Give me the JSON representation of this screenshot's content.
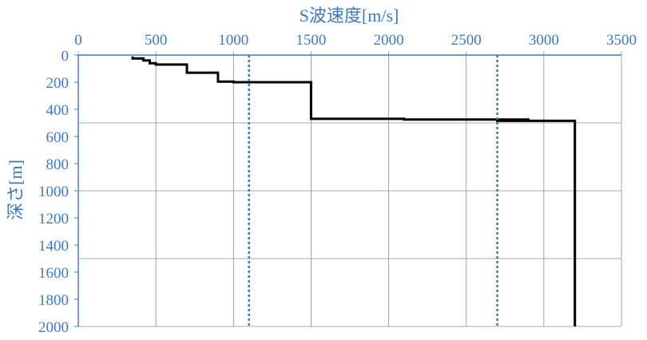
{
  "chart_data": {
    "type": "line",
    "title": "",
    "xlabel": "S波速度[m/s]",
    "ylabel": "深さ[m]",
    "x_axis_position": "top",
    "y_axis_inverted": true,
    "xlim": [
      0,
      3500
    ],
    "ylim": [
      0,
      2000
    ],
    "x_ticks": [
      "0",
      "500",
      "1000",
      "1500",
      "2000",
      "2500",
      "3000",
      "3500"
    ],
    "y_ticks": [
      "0",
      "200",
      "400",
      "600",
      "800",
      "1000",
      "1200",
      "1400",
      "1600",
      "1800",
      "2000"
    ],
    "grid": true,
    "colors": {
      "axis_text": "#3f7ac0",
      "profile": "#000000",
      "reference": "#3f7ac0",
      "grid": "#8c8c8c"
    },
    "series": [
      {
        "style": "solid-step",
        "points": [
          [
            350,
            10
          ],
          [
            350,
            25
          ],
          [
            420,
            25
          ],
          [
            420,
            40
          ],
          [
            460,
            40
          ],
          [
            460,
            60
          ],
          [
            500,
            60
          ],
          [
            500,
            70
          ],
          [
            700,
            70
          ],
          [
            700,
            130
          ],
          [
            900,
            130
          ],
          [
            900,
            195
          ],
          [
            1000,
            195
          ],
          [
            1000,
            200
          ],
          [
            1500,
            200
          ],
          [
            1500,
            470
          ],
          [
            2100,
            470
          ],
          [
            2100,
            475
          ],
          [
            2900,
            475
          ],
          [
            2900,
            478
          ],
          [
            2700,
            478
          ],
          [
            2700,
            485
          ],
          [
            3200,
            485
          ],
          [
            3200,
            2000
          ]
        ]
      },
      {
        "style": "dotted-vertical",
        "x": 1100
      },
      {
        "style": "dotted-vertical",
        "x": 2700
      }
    ]
  }
}
